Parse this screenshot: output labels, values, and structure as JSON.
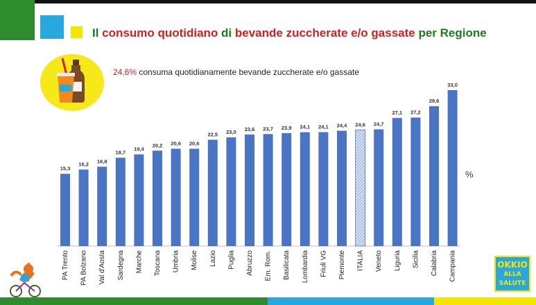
{
  "header": {
    "title_parts": [
      "Il ",
      "consumo quotidiano",
      " di ",
      "bevande zuccherate e/o gassate",
      " per Regione"
    ]
  },
  "subtitle": {
    "highlight": "24,6%",
    "text": " consuma quotidianamente bevande zuccherate e/o gassate"
  },
  "unit_label": "%",
  "icons": {
    "drink": "soda-bottle-and-cup-icon",
    "mascot": "fox-on-bicycle-icon",
    "logo": "okkio-alla-salute-logo"
  },
  "logo_text": [
    "OKKIO",
    "ALLA",
    "SALUTE"
  ],
  "colors": {
    "bar": "#4a74c4",
    "highlight_bar": "#dbe4f4",
    "title_green": "#1f7a1f",
    "accent_red": "#d42020",
    "green": "#2e8b2e",
    "blue": "#29a8e0",
    "yellow": "#f5e600"
  },
  "chart_data": {
    "type": "bar",
    "title": "Il consumo quotidiano di bevande zuccherate e/o gassate per Regione",
    "xlabel": "",
    "ylabel": "%",
    "categories": [
      "PA Trento",
      "PA Bolzano",
      "Val d'Aosta",
      "Sardegna",
      "Marche",
      "Toscana",
      "Umbria",
      "Molise",
      "Lazio",
      "Puglia",
      "Abruzzo",
      "Em. Rom.",
      "Basilicata",
      "Lombardia",
      "Friuli VG",
      "Piemonte",
      "ITALIA",
      "Veneto",
      "Liguria",
      "Sicilia",
      "Calabria",
      "Campania"
    ],
    "values": [
      15.3,
      16.2,
      16.8,
      18.7,
      19.4,
      20.2,
      20.6,
      20.6,
      22.5,
      23.0,
      23.6,
      23.7,
      23.9,
      24.1,
      24.1,
      24.4,
      24.6,
      24.7,
      27.1,
      27.2,
      29.6,
      33.0
    ],
    "value_labels": [
      "15,3",
      "16,2",
      "16,8",
      "18,7",
      "19,4",
      "20,2",
      "20,6",
      "20,6",
      "22,5",
      "23,0",
      "23,6",
      "23,7",
      "23,9",
      "24,1",
      "24,1",
      "24,4",
      "24,6",
      "24,7",
      "27,1",
      "27,2",
      "29,6",
      "33,0"
    ],
    "highlight_category": "ITALIA",
    "ylim": [
      0,
      33
    ],
    "grid": false,
    "legend": "none"
  }
}
